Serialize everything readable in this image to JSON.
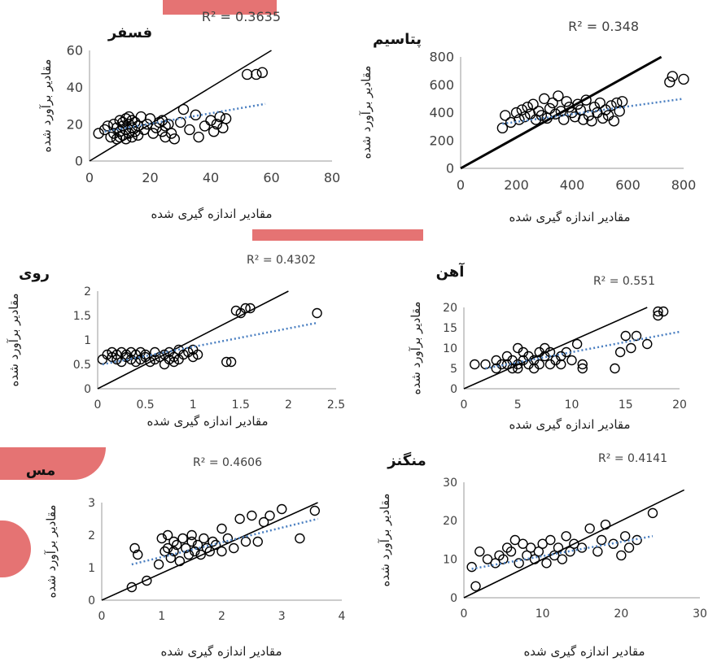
{
  "chart_data": [
    {
      "type": "scatter",
      "title": "فسفر",
      "r2_label": "R² = 0.3635",
      "xlabel": "مقادیر اندازه گیری شده",
      "ylabel": "مقادیر برآورد شده",
      "xlim": [
        0,
        80
      ],
      "ylim": [
        0,
        60
      ],
      "xticks": [
        "0",
        "20",
        "40",
        "60",
        "80"
      ],
      "yticks": [
        "0",
        "20",
        "40",
        "60"
      ],
      "x": [
        3,
        5,
        6,
        7,
        8,
        8,
        9,
        9,
        10,
        10,
        10,
        11,
        11,
        11,
        12,
        12,
        12,
        13,
        13,
        13,
        14,
        14,
        14,
        15,
        15,
        16,
        16,
        17,
        18,
        19,
        20,
        21,
        22,
        23,
        24,
        24,
        25,
        25,
        26,
        27,
        28,
        30,
        31,
        33,
        35,
        36,
        38,
        40,
        41,
        42,
        43,
        44,
        45,
        52,
        55,
        57
      ],
      "y": [
        15,
        17,
        19,
        13,
        20,
        15,
        18,
        12,
        22,
        16,
        13,
        14,
        19,
        21,
        17,
        12,
        23,
        20,
        15,
        24,
        18,
        13,
        22,
        16,
        21,
        19,
        14,
        24,
        17,
        20,
        23,
        15,
        18,
        21,
        16,
        22,
        13,
        19,
        20,
        15,
        12,
        21,
        28,
        17,
        25,
        13,
        19,
        22,
        16,
        20,
        24,
        18,
        23,
        47,
        47,
        48
      ],
      "identity_line": [
        [
          0,
          0
        ],
        [
          60,
          60
        ]
      ],
      "trend_line": [
        [
          5,
          16
        ],
        [
          58,
          31
        ]
      ]
    },
    {
      "type": "scatter",
      "title": "پتاسیم",
      "r2_label": "R² = 0.348",
      "xlabel": "مقادیر اندازه گیری شده",
      "ylabel": "مقادیر برآورد شده",
      "xlim": [
        0,
        800
      ],
      "ylim": [
        0,
        800
      ],
      "xticks": [
        "0",
        "200",
        "400",
        "600",
        "800"
      ],
      "yticks": [
        "0",
        "200",
        "400",
        "600",
        "800"
      ],
      "x": [
        150,
        160,
        180,
        200,
        210,
        220,
        230,
        240,
        250,
        260,
        270,
        280,
        290,
        300,
        310,
        320,
        330,
        340,
        350,
        360,
        370,
        380,
        390,
        400,
        410,
        420,
        430,
        440,
        450,
        460,
        470,
        480,
        490,
        500,
        510,
        520,
        530,
        540,
        550,
        560,
        570,
        580,
        750,
        760,
        800
      ],
      "y": [
        290,
        380,
        330,
        400,
        350,
        420,
        370,
        440,
        390,
        460,
        350,
        410,
        380,
        500,
        360,
        430,
        470,
        390,
        520,
        410,
        350,
        480,
        440,
        400,
        370,
        460,
        420,
        350,
        490,
        380,
        340,
        440,
        400,
        470,
        360,
        420,
        380,
        450,
        340,
        470,
        410,
        480,
        620,
        660,
        640
      ],
      "identity_line": [
        [
          0,
          0
        ],
        [
          720,
          800
        ]
      ],
      "trend_line": [
        [
          150,
          320
        ],
        [
          800,
          500
        ]
      ]
    },
    {
      "type": "scatter",
      "title": "روی",
      "r2_label": "R² = 0.4302",
      "xlabel": "مقادیر اندازه گیری شده",
      "ylabel": "مقادیر برآورد شده",
      "xlim": [
        0,
        2.5
      ],
      "ylim": [
        0,
        2
      ],
      "xticks": [
        "0",
        "0.5",
        "1",
        "1.5",
        "2",
        "2.5"
      ],
      "yticks": [
        "0",
        "0.5",
        "1",
        "1.5",
        "2"
      ],
      "x": [
        0.05,
        0.1,
        0.15,
        0.15,
        0.2,
        0.2,
        0.25,
        0.25,
        0.3,
        0.3,
        0.35,
        0.35,
        0.4,
        0.4,
        0.45,
        0.45,
        0.5,
        0.5,
        0.55,
        0.6,
        0.6,
        0.65,
        0.7,
        0.7,
        0.75,
        0.75,
        0.8,
        0.8,
        0.85,
        0.85,
        0.9,
        0.95,
        1.0,
        1.0,
        1.05,
        1.35,
        1.4,
        1.45,
        1.5,
        1.55,
        1.6,
        2.3
      ],
      "y": [
        0.6,
        0.7,
        0.65,
        0.75,
        0.6,
        0.7,
        0.55,
        0.75,
        0.65,
        0.7,
        0.6,
        0.75,
        0.55,
        0.7,
        0.6,
        0.75,
        0.65,
        0.7,
        0.55,
        0.6,
        0.75,
        0.65,
        0.5,
        0.7,
        0.6,
        0.75,
        0.55,
        0.65,
        0.6,
        0.8,
        0.7,
        0.75,
        0.65,
        0.8,
        0.7,
        0.55,
        0.55,
        1.6,
        1.55,
        1.65,
        1.65,
        1.55
      ],
      "identity_line": [
        [
          0,
          0
        ],
        [
          2,
          2
        ]
      ],
      "trend_line": [
        [
          0.05,
          0.5
        ],
        [
          2.3,
          1.35
        ]
      ]
    },
    {
      "type": "scatter",
      "title": "آهن",
      "r2_label": "R² = 0.551",
      "xlabel": "مقادیر اندازه گیری شده",
      "ylabel": "مقادیر برآورد شده",
      "xlim": [
        0,
        20
      ],
      "ylim": [
        0,
        20
      ],
      "xticks": [
        "0",
        "5",
        "10",
        "15",
        "20"
      ],
      "yticks": [
        "0",
        "5",
        "10",
        "15",
        "20"
      ],
      "x": [
        1,
        2,
        3,
        3,
        3.5,
        4,
        4,
        4.5,
        4.5,
        5,
        5,
        5,
        5.5,
        5.5,
        6,
        6,
        6.5,
        6.5,
        7,
        7,
        7.5,
        7.5,
        8,
        8,
        8.5,
        9,
        9,
        9.5,
        10,
        10.5,
        11,
        11,
        14,
        14.5,
        15,
        15.5,
        16,
        17,
        18,
        18,
        18.5
      ],
      "y": [
        6,
        6,
        5,
        7,
        6,
        6,
        8,
        5,
        7,
        10,
        6,
        5,
        9,
        7,
        6,
        8,
        5,
        7,
        9,
        6,
        8,
        10,
        6,
        9,
        7,
        8,
        6,
        9,
        7,
        11,
        5,
        6,
        5,
        9,
        13,
        10,
        13,
        11,
        18,
        19,
        19
      ],
      "identity_line": [
        [
          0,
          0
        ],
        [
          17,
          20
        ]
      ],
      "trend_line": [
        [
          2,
          5
        ],
        [
          20,
          14
        ]
      ]
    },
    {
      "type": "scatter",
      "title": "مس",
      "r2_label": "R² = 0.4606",
      "xlabel": "مقادیر اندازه گیری شده",
      "ylabel": "مقادیر برآورد شده",
      "xlim": [
        0,
        4
      ],
      "ylim": [
        0,
        3
      ],
      "xticks": [
        "0",
        "1",
        "2",
        "3",
        "4"
      ],
      "yticks": [
        "0",
        "1",
        "2",
        "3"
      ],
      "x": [
        0.5,
        0.55,
        0.6,
        0.75,
        0.95,
        1.0,
        1.05,
        1.1,
        1.1,
        1.15,
        1.2,
        1.2,
        1.25,
        1.3,
        1.35,
        1.4,
        1.45,
        1.5,
        1.5,
        1.55,
        1.6,
        1.65,
        1.7,
        1.75,
        1.8,
        1.85,
        1.9,
        2.0,
        2.0,
        2.1,
        2.2,
        2.3,
        2.4,
        2.5,
        2.6,
        2.7,
        2.8,
        3.0,
        3.3,
        3.55
      ],
      "y": [
        0.4,
        1.6,
        1.4,
        0.6,
        1.1,
        1.9,
        1.5,
        2.0,
        1.6,
        1.3,
        1.8,
        1.5,
        1.7,
        1.2,
        1.9,
        1.6,
        1.4,
        1.8,
        2.0,
        1.5,
        1.7,
        1.4,
        1.9,
        1.6,
        1.5,
        1.8,
        1.7,
        2.2,
        1.5,
        1.9,
        1.6,
        2.5,
        1.8,
        2.6,
        1.8,
        2.4,
        2.6,
        2.8,
        1.9,
        2.75
      ],
      "identity_line": [
        [
          0,
          0
        ],
        [
          3.6,
          3
        ]
      ],
      "trend_line": [
        [
          0.5,
          1.1
        ],
        [
          3.6,
          2.5
        ]
      ]
    },
    {
      "type": "scatter",
      "title": "منگنز",
      "r2_label": "R² = 0.4141",
      "xlabel": "مقادیر اندازه گیری شده",
      "ylabel": "مقادیر برآورد شده",
      "xlim": [
        0,
        30
      ],
      "ylim": [
        0,
        30
      ],
      "xticks": [
        "0",
        "10",
        "20",
        "30"
      ],
      "yticks": [
        "0",
        "10",
        "20",
        "30"
      ],
      "x": [
        1,
        1.5,
        2,
        3,
        4,
        4.5,
        5,
        5.5,
        6,
        6.5,
        7,
        7.5,
        8,
        8.5,
        9,
        9.5,
        10,
        10.5,
        11,
        11.5,
        12,
        12.5,
        13,
        13.5,
        14,
        15,
        16,
        17,
        17.5,
        18,
        19,
        20,
        20.5,
        21,
        22,
        24
      ],
      "y": [
        8,
        3,
        12,
        10,
        9,
        11,
        10,
        13,
        12,
        15,
        9,
        14,
        11,
        13,
        10,
        12,
        14,
        9,
        15,
        11,
        13,
        10,
        16,
        12,
        14,
        13,
        18,
        12,
        15,
        19,
        14,
        11,
        16,
        13,
        15,
        22
      ],
      "identity_line": [
        [
          0,
          0
        ],
        [
          28,
          28
        ]
      ],
      "trend_line": [
        [
          1,
          7.5
        ],
        [
          24,
          16
        ]
      ]
    }
  ]
}
